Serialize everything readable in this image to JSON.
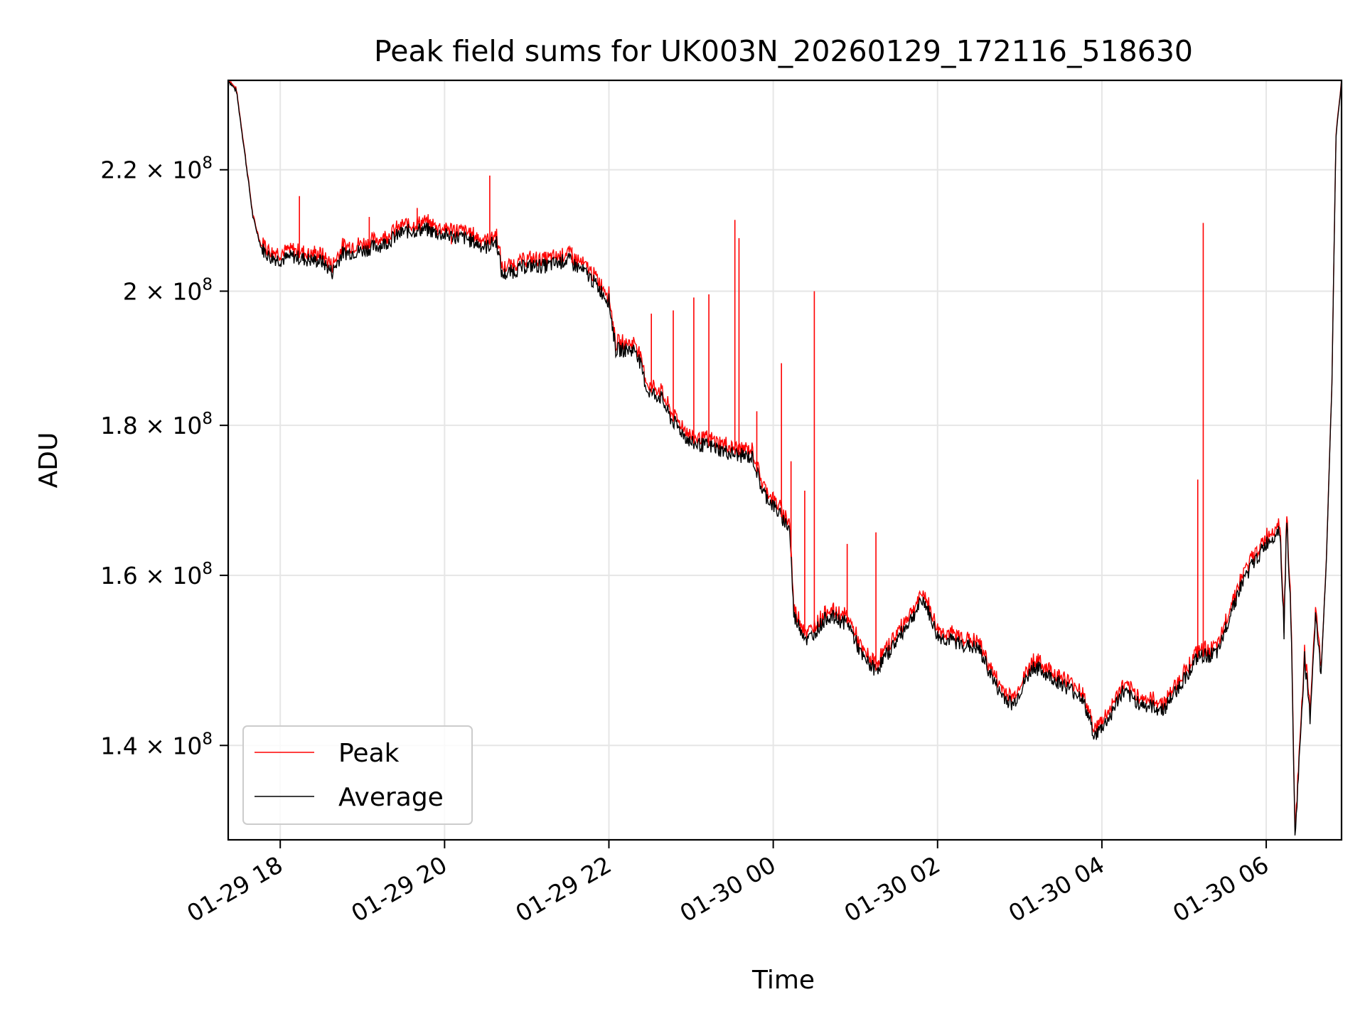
{
  "chart_data": {
    "type": "line",
    "title": "Peak field sums for UK003N_20260129_172116_518630",
    "xlabel": "Time",
    "ylabel": "ADU",
    "yscale": "log",
    "grid": true,
    "legend_position": "lower-left",
    "xlim": [
      "01-29 17:22",
      "01-30 06:55"
    ],
    "ylim": [
      130000000,
      236000000
    ],
    "x_ticks": [
      {
        "value": "01-29 18:00",
        "label": "01-29 18"
      },
      {
        "value": "01-29 20:00",
        "label": "01-29 20"
      },
      {
        "value": "01-29 22:00",
        "label": "01-29 22"
      },
      {
        "value": "01-30 00:00",
        "label": "01-30 00"
      },
      {
        "value": "01-30 02:00",
        "label": "01-30 02"
      },
      {
        "value": "01-30 04:00",
        "label": "01-30 04"
      },
      {
        "value": "01-30 06:00",
        "label": "01-30 06"
      }
    ],
    "y_ticks": [
      {
        "value": 140000000,
        "mantissa": "1.4",
        "base": "10",
        "exp": "8"
      },
      {
        "value": 160000000,
        "mantissa": "1.6",
        "base": "10",
        "exp": "8"
      },
      {
        "value": 180000000,
        "mantissa": "1.8",
        "base": "10",
        "exp": "8"
      },
      {
        "value": 200000000,
        "mantissa": "2",
        "base": "10",
        "exp": "8"
      },
      {
        "value": 220000000,
        "mantissa": "2.2",
        "base": "10",
        "exp": "8"
      }
    ],
    "series": [
      {
        "name": "Average",
        "color": "#000000",
        "points": [
          [
            "01-29 17:22",
            236000000
          ],
          [
            "01-29 17:28",
            234000000
          ],
          [
            "01-29 17:34",
            223000000
          ],
          [
            "01-29 17:40",
            212000000
          ],
          [
            "01-29 17:46",
            207000000
          ],
          [
            "01-29 17:52",
            205500000
          ],
          [
            "01-29 18:00",
            205000000
          ],
          [
            "01-29 18:10",
            205500000
          ],
          [
            "01-29 18:20",
            205000000
          ],
          [
            "01-29 18:30",
            204800000
          ],
          [
            "01-29 18:38",
            203000000
          ],
          [
            "01-29 18:45",
            206000000
          ],
          [
            "01-29 19:00",
            206500000
          ],
          [
            "01-29 19:15",
            207500000
          ],
          [
            "01-29 19:30",
            209500000
          ],
          [
            "01-29 19:45",
            210000000
          ],
          [
            "01-29 20:00",
            209000000
          ],
          [
            "01-29 20:15",
            208500000
          ],
          [
            "01-29 20:30",
            207000000
          ],
          [
            "01-29 20:38",
            208000000
          ],
          [
            "01-29 20:42",
            202500000
          ],
          [
            "01-29 21:00",
            204000000
          ],
          [
            "01-29 21:15",
            204000000
          ],
          [
            "01-29 21:30",
            205000000
          ],
          [
            "01-29 21:45",
            202500000
          ],
          [
            "01-29 22:00",
            198500000
          ],
          [
            "01-29 22:05",
            191000000
          ],
          [
            "01-29 22:20",
            191000000
          ],
          [
            "01-29 22:28",
            185000000
          ],
          [
            "01-29 22:38",
            184000000
          ],
          [
            "01-29 22:45",
            181000000
          ],
          [
            "01-29 23:00",
            177500000
          ],
          [
            "01-29 23:15",
            177000000
          ],
          [
            "01-29 23:30",
            176000000
          ],
          [
            "01-29 23:45",
            175500000
          ],
          [
            "01-29 23:52",
            171000000
          ],
          [
            "01-30 00:00",
            169000000
          ],
          [
            "01-30 00:12",
            166000000
          ],
          [
            "01-30 00:15",
            155000000
          ],
          [
            "01-30 00:25",
            152000000
          ],
          [
            "01-30 00:40",
            155000000
          ],
          [
            "01-30 00:55",
            154000000
          ],
          [
            "01-30 01:05",
            150000000
          ],
          [
            "01-30 01:15",
            148500000
          ],
          [
            "01-30 01:30",
            152000000
          ],
          [
            "01-30 01:50",
            157000000
          ],
          [
            "01-30 02:00",
            152500000
          ],
          [
            "01-30 02:20",
            151500000
          ],
          [
            "01-30 02:30",
            151000000
          ],
          [
            "01-30 02:45",
            146000000
          ],
          [
            "01-30 02:55",
            144500000
          ],
          [
            "01-30 03:10",
            149000000
          ],
          [
            "01-30 03:30",
            147000000
          ],
          [
            "01-30 03:45",
            145500000
          ],
          [
            "01-30 03:55",
            141000000
          ],
          [
            "01-30 04:05",
            143000000
          ],
          [
            "01-30 04:15",
            146000000
          ],
          [
            "01-30 04:30",
            144500000
          ],
          [
            "01-30 04:45",
            144000000
          ],
          [
            "01-30 05:00",
            147500000
          ],
          [
            "01-30 05:10",
            150000000
          ],
          [
            "01-30 05:25",
            150500000
          ],
          [
            "01-30 05:35",
            156000000
          ],
          [
            "01-30 05:45",
            160000000
          ],
          [
            "01-30 06:00",
            164000000
          ],
          [
            "01-30 06:10",
            166000000
          ],
          [
            "01-30 06:13",
            153000000
          ],
          [
            "01-30 06:15",
            167500000
          ],
          [
            "01-30 06:18",
            155000000
          ],
          [
            "01-30 06:21",
            130000000
          ],
          [
            "01-30 06:24",
            138000000
          ],
          [
            "01-30 06:28",
            150000000
          ],
          [
            "01-30 06:32",
            143000000
          ],
          [
            "01-30 06:36",
            155000000
          ],
          [
            "01-30 06:40",
            148000000
          ],
          [
            "01-30 06:44",
            162000000
          ],
          [
            "01-30 06:48",
            186000000
          ],
          [
            "01-30 06:51",
            226000000
          ],
          [
            "01-30 06:55",
            236000000
          ]
        ]
      },
      {
        "name": "Peak",
        "color": "#ff0000",
        "spikes": [
          [
            "01-29 18:14",
            215500000
          ],
          [
            "01-29 19:05",
            212000000
          ],
          [
            "01-29 19:40",
            213500000
          ],
          [
            "01-29 19:55",
            209000000
          ],
          [
            "01-29 20:05",
            207500000
          ],
          [
            "01-29 20:33",
            219000000
          ],
          [
            "01-29 21:33",
            207000000
          ],
          [
            "01-29 22:31",
            196500000
          ],
          [
            "01-29 22:47",
            197000000
          ],
          [
            "01-29 23:02",
            199000000
          ],
          [
            "01-29 23:13",
            199500000
          ],
          [
            "01-29 23:32",
            211500000
          ],
          [
            "01-29 23:35",
            208500000
          ],
          [
            "01-29 23:48",
            182000000
          ],
          [
            "01-30 00:06",
            189000000
          ],
          [
            "01-30 00:13",
            175000000
          ],
          [
            "01-30 00:23",
            171000000
          ],
          [
            "01-30 00:30",
            200000000
          ],
          [
            "01-30 00:54",
            164000000
          ],
          [
            "01-30 01:15",
            165500000
          ],
          [
            "01-30 05:10",
            172500000
          ],
          [
            "01-30 05:14",
            211000000
          ]
        ]
      }
    ]
  }
}
